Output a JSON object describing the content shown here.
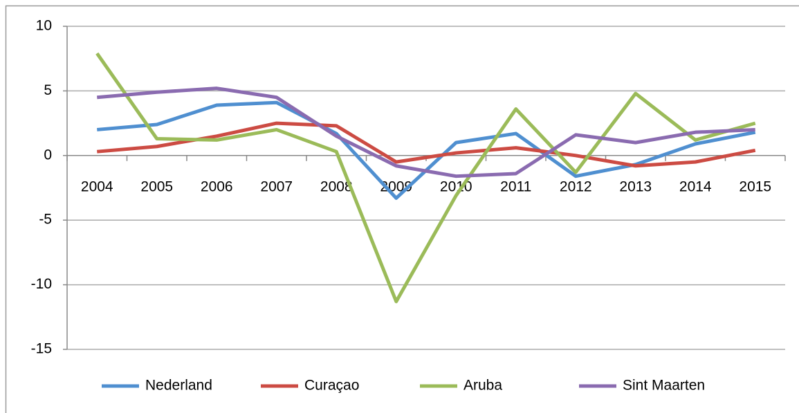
{
  "chart_data": {
    "type": "line",
    "categories": [
      "2004",
      "2005",
      "2006",
      "2007",
      "2008",
      "2009",
      "2010",
      "2011",
      "2012",
      "2013",
      "2014",
      "2015"
    ],
    "series": [
      {
        "name": "Nederland",
        "color": "#4f8fd0",
        "values": [
          2.0,
          2.4,
          3.9,
          4.1,
          1.7,
          -3.3,
          1.0,
          1.7,
          -1.6,
          -0.7,
          0.9,
          1.8
        ]
      },
      {
        "name": "Curaçao",
        "color": "#cc4b43",
        "values": [
          0.3,
          0.7,
          1.5,
          2.5,
          2.3,
          -0.5,
          0.2,
          0.6,
          0.0,
          -0.8,
          -0.5,
          0.4
        ]
      },
      {
        "name": "Aruba",
        "color": "#9bbb59",
        "values": [
          7.9,
          1.3,
          1.2,
          2.0,
          0.3,
          -11.3,
          -3.1,
          3.6,
          -1.3,
          4.8,
          1.2,
          2.5
        ]
      },
      {
        "name": "Sint Maarten",
        "color": "#8a6bb0",
        "values": [
          4.5,
          4.9,
          5.2,
          4.5,
          1.5,
          -0.8,
          -1.6,
          -1.4,
          1.6,
          1.0,
          1.8,
          2.0
        ]
      }
    ],
    "ylim": [
      -15,
      10
    ],
    "yticks": [
      -15,
      -10,
      -5,
      0,
      5,
      10
    ],
    "grid": true,
    "legend": "bottom"
  }
}
